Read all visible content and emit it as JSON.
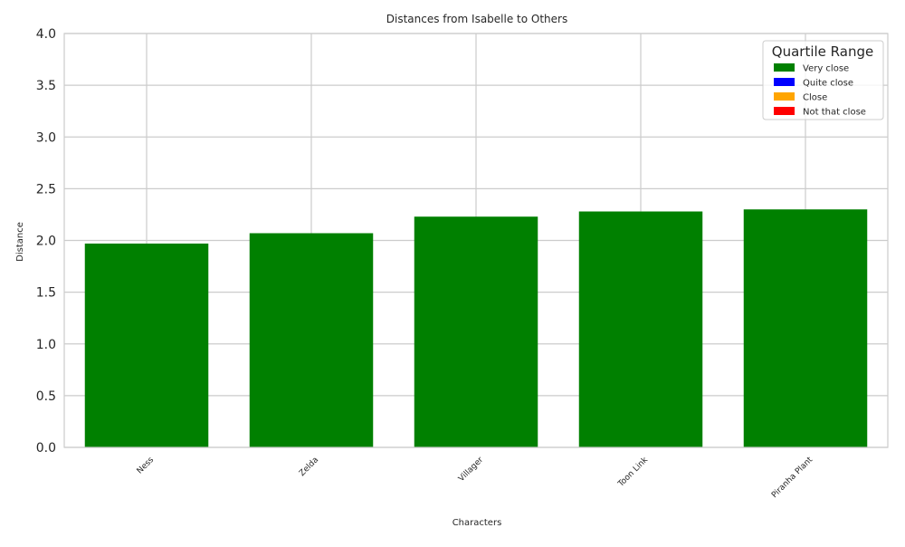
{
  "colors": {
    "bar": "#008000",
    "grid": "#cccccc",
    "axis": "#cccccc",
    "text": "#262626"
  },
  "chart_data": {
    "type": "bar",
    "title": "Distances from Isabelle to Others",
    "xlabel": "Characters",
    "ylabel": "Distance",
    "categories": [
      "Ness",
      "Zelda",
      "Villager",
      "Toon Link",
      "Piranha Plant"
    ],
    "values": [
      1.97,
      2.07,
      2.23,
      2.28,
      2.3
    ],
    "ylim": [
      0,
      4
    ],
    "yticks": [
      "0.0",
      "0.5",
      "1.0",
      "1.5",
      "2.0",
      "2.5",
      "3.0",
      "3.5",
      "4.0"
    ],
    "grid": true,
    "legend": {
      "title": "Quartile Range",
      "placement": "top-right",
      "entries": [
        {
          "label": "Very close",
          "color": "#008000"
        },
        {
          "label": "Quite close",
          "color": "#0000ff"
        },
        {
          "label": "Close",
          "color": "#ffa500"
        },
        {
          "label": "Not that close",
          "color": "#ff0000"
        }
      ]
    }
  }
}
